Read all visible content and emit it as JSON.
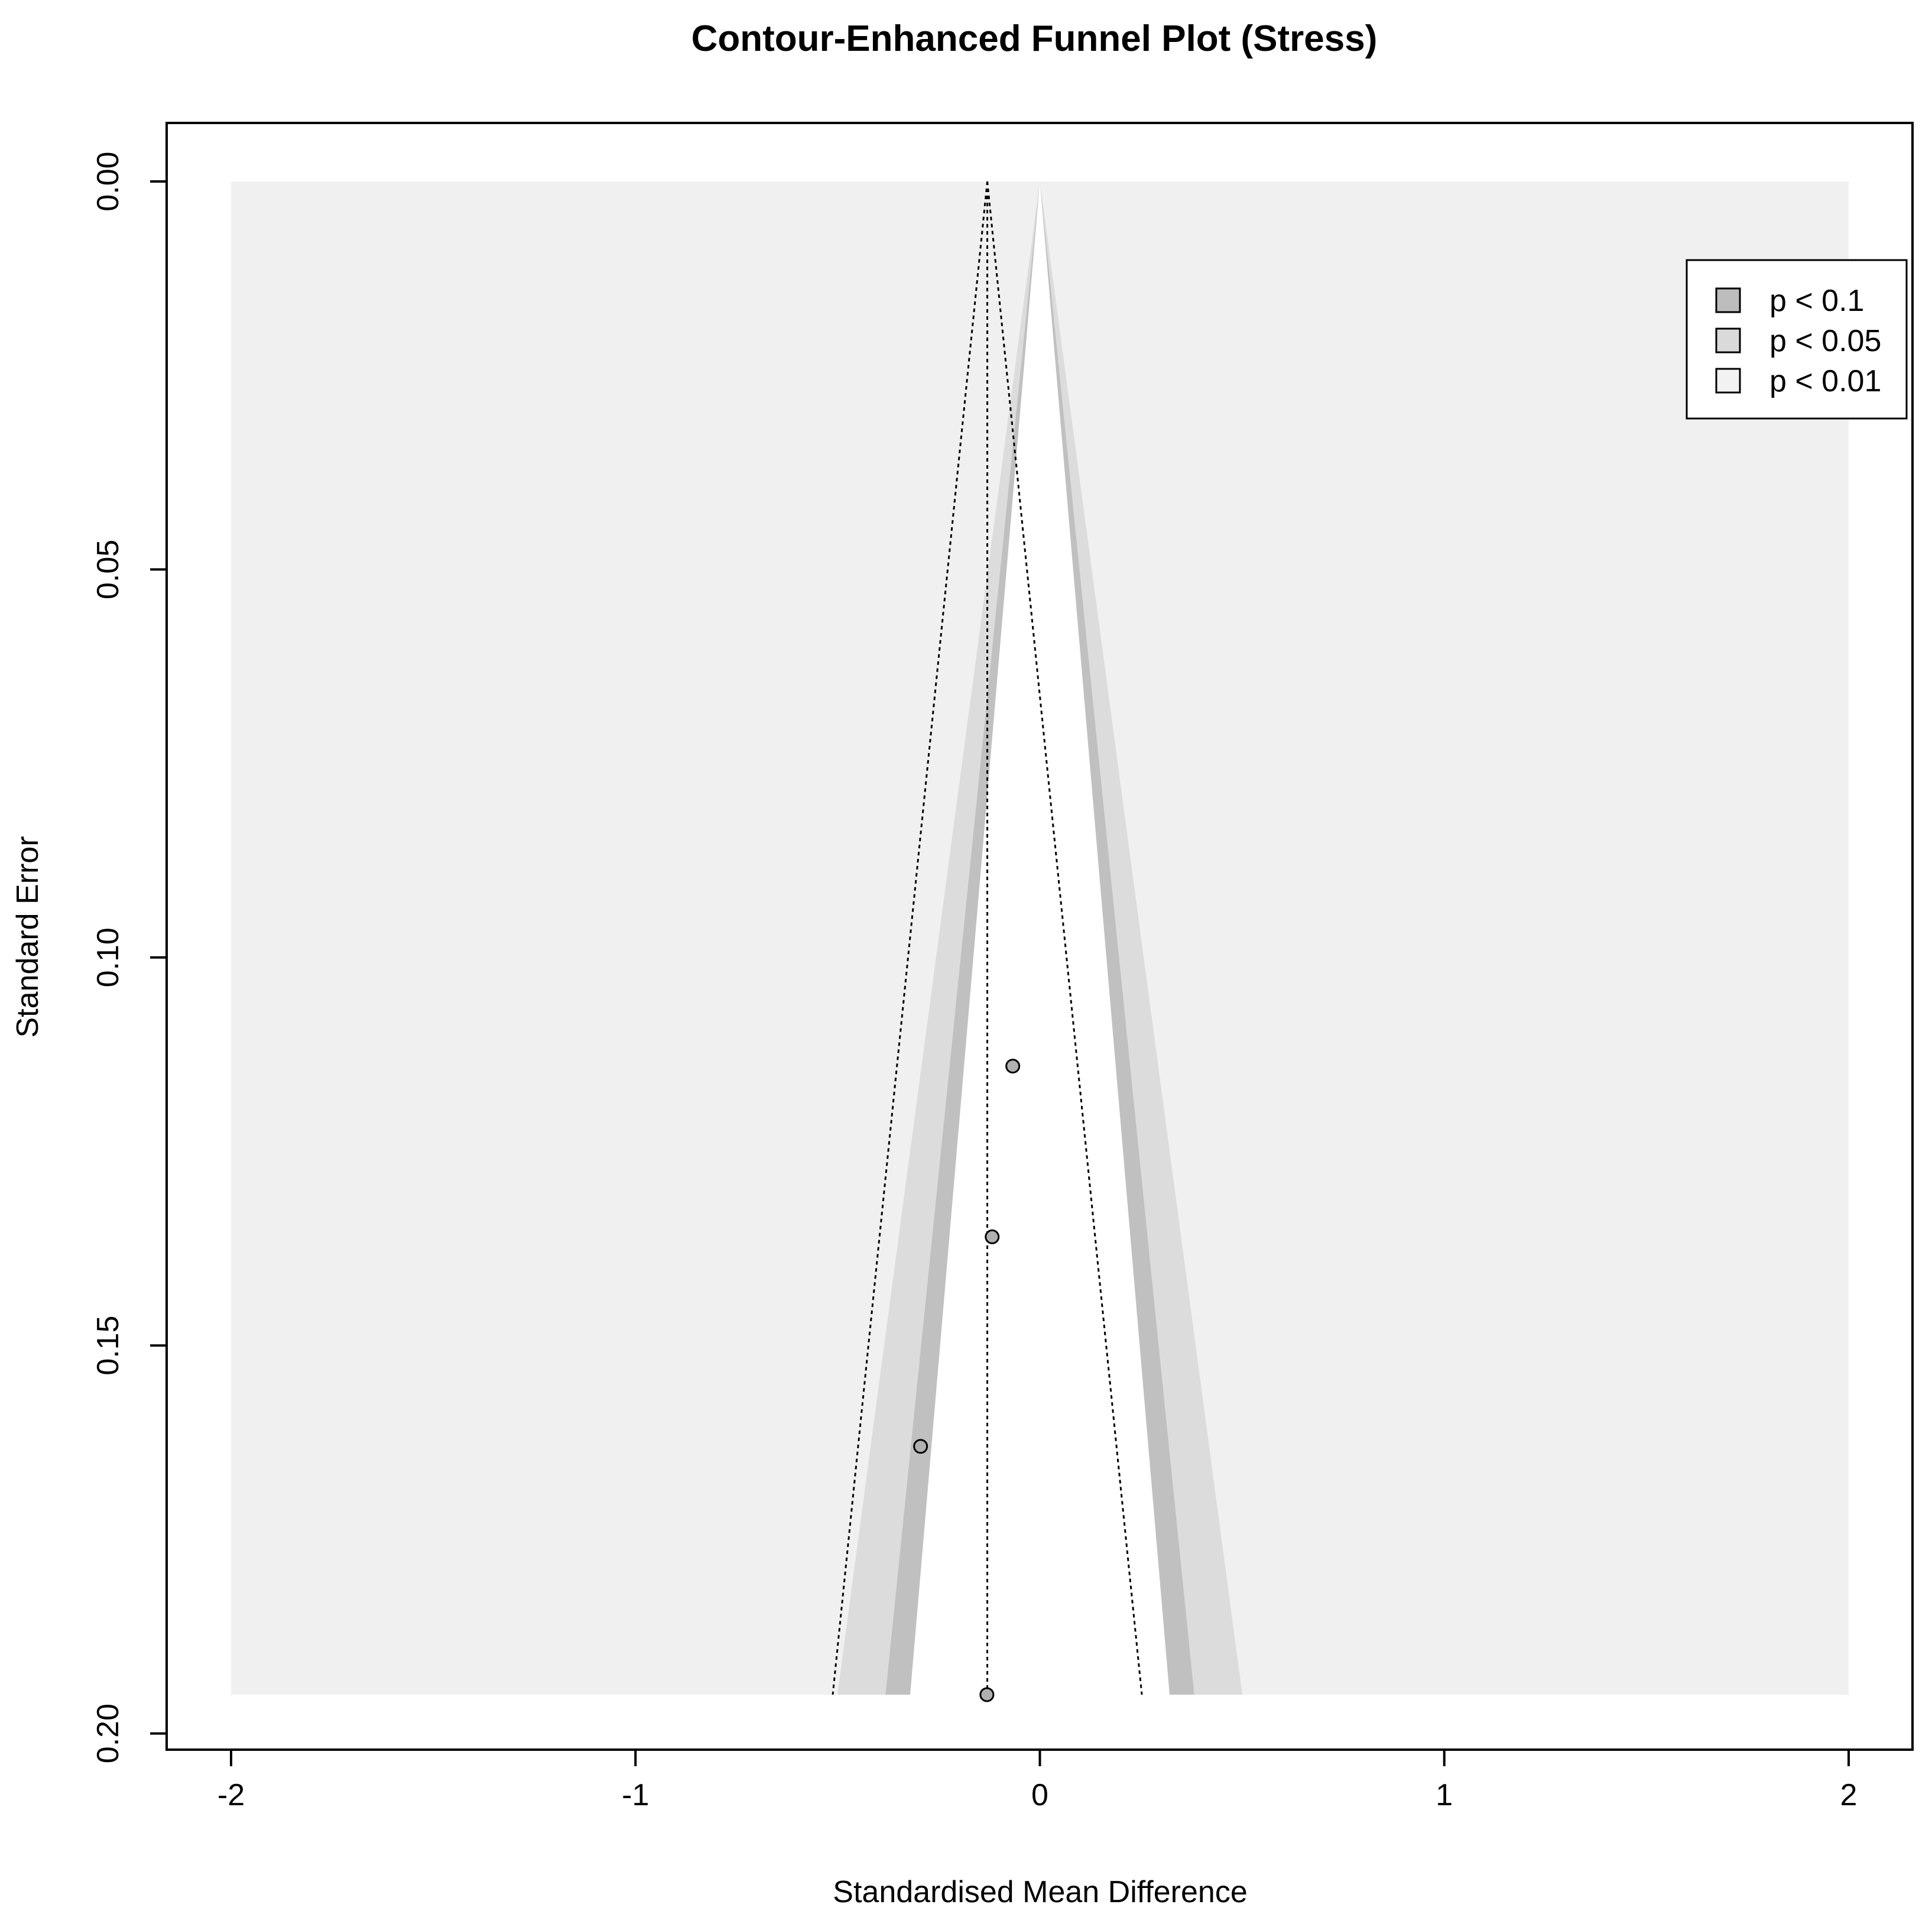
{
  "chart_data": {
    "type": "scatter",
    "title": "Contour-Enhanced Funnel Plot (Stress)",
    "xlabel": "Standardised Mean Difference",
    "ylabel": "Standard Error",
    "xlim": [
      -2,
      2
    ],
    "ylim": [
      0.195,
      0
    ],
    "x_ticks": [
      {
        "value": -2,
        "label": "-2"
      },
      {
        "value": -1,
        "label": "-1"
      },
      {
        "value": 0,
        "label": "0"
      },
      {
        "value": 1,
        "label": "1"
      },
      {
        "value": 2,
        "label": "2"
      }
    ],
    "y_ticks": [
      {
        "value": 0.0,
        "label": "0.00"
      },
      {
        "value": 0.05,
        "label": "0.05"
      },
      {
        "value": 0.1,
        "label": "0.10"
      },
      {
        "value": 0.15,
        "label": "0.15"
      },
      {
        "value": 0.2,
        "label": "0.20"
      }
    ],
    "y_reversed": true,
    "background_region": {
      "x": [
        -2,
        2
      ],
      "y": [
        0,
        0.195
      ]
    },
    "contours": [
      {
        "label": "p < 0.1",
        "z": 1.645,
        "color": "#c0c0c0"
      },
      {
        "label": "p < 0.05",
        "z": 1.96,
        "color": "#dcdcdc"
      },
      {
        "label": "p < 0.01",
        "z": 2.576,
        "color": "#f2f2f2"
      }
    ],
    "pooled_estimate": -0.13,
    "reference_funnel_z": 1.96,
    "points": [
      {
        "x": -0.067,
        "y": 0.114
      },
      {
        "x": -0.118,
        "y": 0.136
      },
      {
        "x": -0.295,
        "y": 0.163
      },
      {
        "x": -0.131,
        "y": 0.195
      }
    ],
    "legend": {
      "position": "top-right",
      "entries": [
        {
          "label": "p < 0.1",
          "color": "#bdbdbd"
        },
        {
          "label": "p < 0.05",
          "color": "#dadada"
        },
        {
          "label": "p < 0.01",
          "color": "#f2f2f2"
        }
      ]
    },
    "colors": {
      "outer_background": "#f0f0f0",
      "point_fill": "#b0b0b0",
      "axis": "#000000"
    }
  }
}
